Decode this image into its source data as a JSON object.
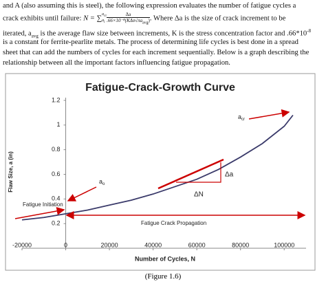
{
  "text": {
    "line1": "and A (also assuming this is steel), the following expression evaluates the number of fatigue cycles a",
    "line2_start": "crack exhibits until failure:",
    "formula": {
      "lhs": "N = ∑",
      "upper": "a",
      "upper_sub": "cr",
      "lower": "a",
      "lower_sub": "i",
      "numerator": "Δa",
      "denominator": ".66×10⁻⁸(KΔσ√πa",
      "denominator_sub": "avg",
      "denominator_end": ")"
    },
    "line2_end": ". Where Δa is the size of crack increment to be",
    "line3_start": "iterated, a",
    "line3_sub": "avg",
    "line3_mid": " is the average flaw size between increments, K is the stress concentration factor and .66*10",
    "line3_sup": "-8",
    "line4": "is a constant for ferrite-pearlite metals.  The process of determining life cycles is best done in a spread",
    "line5": "sheet that can add the numbers of cycles for each increment sequentially.  Below is a graph describing the",
    "line6": "relationship between all the important factors influencing fatigue propagation."
  },
  "chart_data": {
    "type": "line",
    "title": "Fatigue-Crack-Growth Curve",
    "x_label": "Number of Cycles, N",
    "y_label": "Flaw Size, a (in)",
    "x": [
      -20000,
      -10000,
      0,
      10000,
      20000,
      30000,
      40000,
      50000,
      60000,
      70000,
      80000,
      90000,
      100000,
      104000
    ],
    "series": [
      {
        "color": "#3a3a6a",
        "values": [
          0.23,
          0.25,
          0.28,
          0.31,
          0.35,
          0.39,
          0.44,
          0.5,
          0.56,
          0.64,
          0.74,
          0.85,
          0.99,
          1.08
        ]
      }
    ],
    "xlim": [
      -20000,
      110000
    ],
    "xticks": [
      -20000,
      0,
      20000,
      40000,
      60000,
      80000,
      100000
    ],
    "ylim": [
      0,
      1.2
    ],
    "yticks": [
      0.2,
      0.4,
      0.6,
      0.8,
      1,
      1.2
    ],
    "annotations": {
      "a_cr": "a",
      "a_cr_sub": "cr",
      "a_0": "a",
      "a_0_sub": "o",
      "delta_a": "Δa",
      "delta_n": "ΔN",
      "initiation": "Fatigue Initiation",
      "propagation": "Fatigue Crack Propagation"
    }
  },
  "caption": "(Figure 1.6)"
}
